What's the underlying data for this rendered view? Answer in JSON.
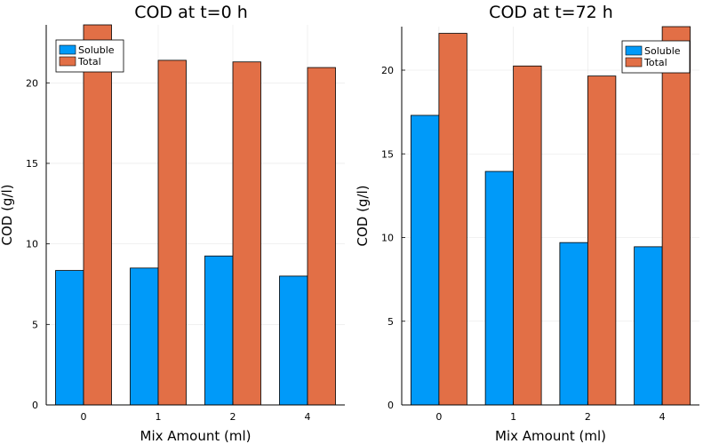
{
  "chart_data": [
    {
      "type": "bar",
      "title": "COD at t=0 h",
      "xlabel": "Mix Amount (ml)",
      "ylabel": "COD (g/l)",
      "categories": [
        "0",
        "1",
        "2",
        "4"
      ],
      "ylim": [
        0,
        23.6
      ],
      "yticks": [
        0,
        5,
        10,
        15,
        20
      ],
      "grid": true,
      "legend_position": "top-left",
      "series": [
        {
          "name": "Soluble",
          "color": "#009af9",
          "values": [
            8.35,
            8.5,
            9.25,
            8.0
          ]
        },
        {
          "name": "Total",
          "color": "#e26f46",
          "values": [
            23.6,
            21.4,
            21.3,
            20.95
          ]
        }
      ]
    },
    {
      "type": "bar",
      "title": "COD at t=72 h",
      "xlabel": "Mix Amount (ml)",
      "ylabel": "COD (g/l)",
      "categories": [
        "0",
        "1",
        "2",
        "4"
      ],
      "ylim": [
        0,
        22.6
      ],
      "yticks": [
        0,
        5,
        10,
        15,
        20
      ],
      "grid": true,
      "legend_position": "top-right",
      "series": [
        {
          "name": "Soluble",
          "color": "#009af9",
          "values": [
            17.3,
            13.95,
            9.7,
            9.45
          ]
        },
        {
          "name": "Total",
          "color": "#e26f46",
          "values": [
            22.2,
            20.25,
            19.65,
            22.6
          ]
        }
      ]
    }
  ]
}
